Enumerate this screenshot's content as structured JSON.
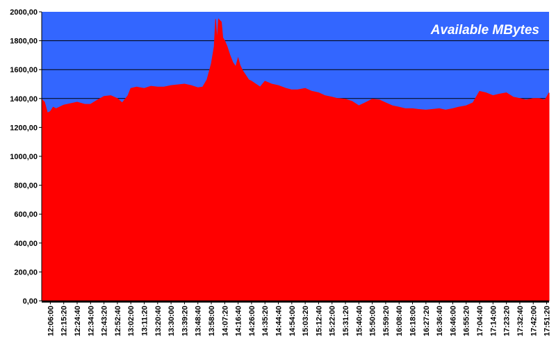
{
  "chart_data": {
    "type": "area",
    "title": "Available MBytes",
    "xlabel": "",
    "ylabel": "",
    "ylim": [
      0,
      2000
    ],
    "grid": true,
    "legend": "none",
    "colors": {
      "plot_bg": "#3366ff",
      "area": "#ff0000",
      "gridline": "#000000",
      "title": "#ffffff"
    },
    "y_ticks": [
      "0,00",
      "200,00",
      "400,00",
      "600,00",
      "800,00",
      "1000,00",
      "1200,00",
      "1400,00",
      "1600,00",
      "1800,00",
      "2000,00"
    ],
    "x_ticks": [
      "12:06:00",
      "12:15:20",
      "12:24:40",
      "12:34:00",
      "12:43:20",
      "12:52:40",
      "13:02:00",
      "13:11:20",
      "13:20:40",
      "13:30:00",
      "13:39:20",
      "13:48:40",
      "13:58:00",
      "14:07:20",
      "14:16:40",
      "14:26:00",
      "14:35:20",
      "14:44:40",
      "14:54:00",
      "15:03:20",
      "15:12:40",
      "15:22:00",
      "15:31:20",
      "15:40:40",
      "15:50:00",
      "15:59:20",
      "16:08:40",
      "16:18:00",
      "16:27:20",
      "16:36:40",
      "16:46:00",
      "16:55:20",
      "17:04:40",
      "17:14:00",
      "17:23:20",
      "17:32:40",
      "17:42:00",
      "17:51:20"
    ],
    "x": [
      "12:00:00",
      "12:02:00",
      "12:04:00",
      "12:06:00",
      "12:08:00",
      "12:10:00",
      "12:15:20",
      "12:20:00",
      "12:24:40",
      "12:30:00",
      "12:34:00",
      "12:38:00",
      "12:43:20",
      "12:48:00",
      "12:52:40",
      "12:56:00",
      "13:00:00",
      "13:02:00",
      "13:06:00",
      "13:11:20",
      "13:16:00",
      "13:20:40",
      "13:25:00",
      "13:30:00",
      "13:35:00",
      "13:39:20",
      "13:44:00",
      "13:48:40",
      "13:52:00",
      "13:55:00",
      "13:58:00",
      "14:00:00",
      "14:01:00",
      "14:02:00",
      "14:03:00",
      "14:04:00",
      "14:05:00",
      "14:06:00",
      "14:07:20",
      "14:09:00",
      "14:11:00",
      "14:13:00",
      "14:15:00",
      "14:16:40",
      "14:18:00",
      "14:20:00",
      "14:22:00",
      "14:24:00",
      "14:26:00",
      "14:29:00",
      "14:32:00",
      "14:35:20",
      "14:40:00",
      "14:44:40",
      "14:50:00",
      "14:54:00",
      "14:58:00",
      "15:03:20",
      "15:08:00",
      "15:12:40",
      "15:17:00",
      "15:22:00",
      "15:26:00",
      "15:31:20",
      "15:36:00",
      "15:40:40",
      "15:45:00",
      "15:50:00",
      "15:55:00",
      "15:59:20",
      "16:04:00",
      "16:08:40",
      "16:13:00",
      "16:18:00",
      "16:22:00",
      "16:27:20",
      "16:32:00",
      "16:36:40",
      "16:41:00",
      "16:46:00",
      "16:50:00",
      "16:55:20",
      "17:00:00",
      "17:04:40",
      "17:09:00",
      "17:14:00",
      "17:18:00",
      "17:23:20",
      "17:28:00",
      "17:32:40",
      "17:37:00",
      "17:42:00",
      "17:46:00",
      "17:50:00",
      "17:51:20",
      "17:53:00"
    ],
    "values": [
      1395,
      1375,
      1300,
      1310,
      1340,
      1330,
      1355,
      1365,
      1375,
      1360,
      1360,
      1385,
      1415,
      1420,
      1400,
      1370,
      1420,
      1470,
      1480,
      1470,
      1485,
      1480,
      1480,
      1490,
      1495,
      1500,
      1490,
      1475,
      1480,
      1530,
      1640,
      1760,
      1950,
      1800,
      1950,
      1940,
      1930,
      1820,
      1800,
      1760,
      1700,
      1650,
      1620,
      1680,
      1630,
      1590,
      1560,
      1530,
      1520,
      1500,
      1480,
      1520,
      1500,
      1490,
      1470,
      1460,
      1460,
      1470,
      1450,
      1440,
      1420,
      1410,
      1400,
      1395,
      1380,
      1350,
      1370,
      1395,
      1390,
      1370,
      1350,
      1340,
      1330,
      1330,
      1325,
      1320,
      1325,
      1330,
      1320,
      1330,
      1340,
      1350,
      1370,
      1450,
      1440,
      1420,
      1430,
      1440,
      1410,
      1400,
      1390,
      1400,
      1400,
      1390,
      1410,
      1440
    ]
  }
}
